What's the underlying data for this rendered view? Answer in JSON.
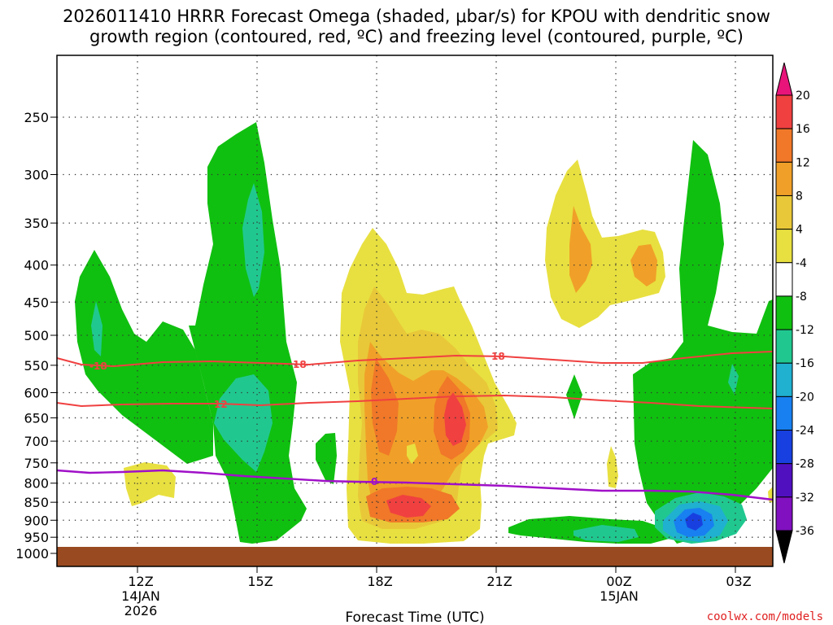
{
  "chart_data": {
    "type": "heatmap",
    "title_line1": "2026011410 HRRR Forecast Omega (shaded, μbar/s) for KPOU with dendritic snow",
    "title_line2": "growth region (contoured, red, ºC) and freezing level (contoured, purple, ºC)",
    "xlabel": "Forecast Time (UTC)",
    "y_ticks": [
      "250",
      "300",
      "350",
      "400",
      "450",
      "500",
      "550",
      "600",
      "650",
      "700",
      "750",
      "800",
      "850",
      "900",
      "950",
      "1000"
    ],
    "y_unit": "hPa",
    "x_ticks": [
      {
        "label": "12Z",
        "sub1": "14JAN",
        "sub2": "2026"
      },
      {
        "label": "15Z",
        "sub1": "",
        "sub2": ""
      },
      {
        "label": "18Z",
        "sub1": "",
        "sub2": ""
      },
      {
        "label": "21Z",
        "sub1": "",
        "sub2": ""
      },
      {
        "label": "00Z",
        "sub1": "15JAN",
        "sub2": ""
      },
      {
        "label": "03Z",
        "sub1": "",
        "sub2": ""
      }
    ],
    "colorbar": {
      "labels": [
        "20",
        "16",
        "12",
        "8",
        "4",
        "-4",
        "-8",
        "-12",
        "-16",
        "-20",
        "-24",
        "-28",
        "-32",
        "-36"
      ],
      "colors": [
        "#e8147a",
        "#f04040",
        "#f07828",
        "#f0a028",
        "#e8c838",
        "#e8e040",
        "#ffffff",
        "#10c010",
        "#20c890",
        "#20b0d0",
        "#1880f0",
        "#1840e0",
        "#5010c0",
        "#8010c0",
        "#a020c0",
        "#a0a0a0",
        "#000000"
      ]
    },
    "contours": {
      "dgz_labels": [
        "-18",
        "18",
        "18",
        "12"
      ],
      "freezing_label": "0"
    },
    "terrain_color": "#9a4a20",
    "credit": "coolwx.com/models"
  }
}
